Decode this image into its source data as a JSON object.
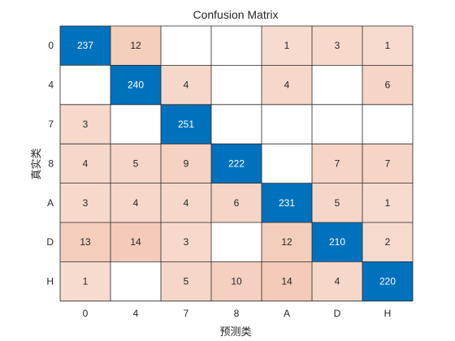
{
  "chart_data": {
    "type": "heatmap",
    "title": "Confusion Matrix",
    "xlabel": "预测类",
    "ylabel": "真实类",
    "x_categories": [
      "0",
      "4",
      "7",
      "8",
      "A",
      "D",
      "H"
    ],
    "y_categories": [
      "0",
      "4",
      "7",
      "8",
      "A",
      "D",
      "H"
    ],
    "matrix": [
      [
        237,
        12,
        null,
        null,
        1,
        3,
        1
      ],
      [
        null,
        240,
        4,
        null,
        4,
        null,
        6
      ],
      [
        3,
        null,
        251,
        null,
        null,
        null,
        null
      ],
      [
        4,
        5,
        9,
        222,
        null,
        7,
        7
      ],
      [
        3,
        4,
        4,
        6,
        231,
        5,
        1
      ],
      [
        13,
        14,
        3,
        null,
        12,
        210,
        2
      ],
      [
        1,
        null,
        5,
        10,
        14,
        4,
        220
      ]
    ],
    "colors": {
      "diagonal": "#0072BD",
      "off_diagonal_max": "#D95319",
      "empty": "#FFFFFF",
      "grid": "#262626",
      "diagonal_text": "#FFFFFF",
      "off_diagonal_text": "#262626"
    },
    "grid": true,
    "legend": "none"
  }
}
